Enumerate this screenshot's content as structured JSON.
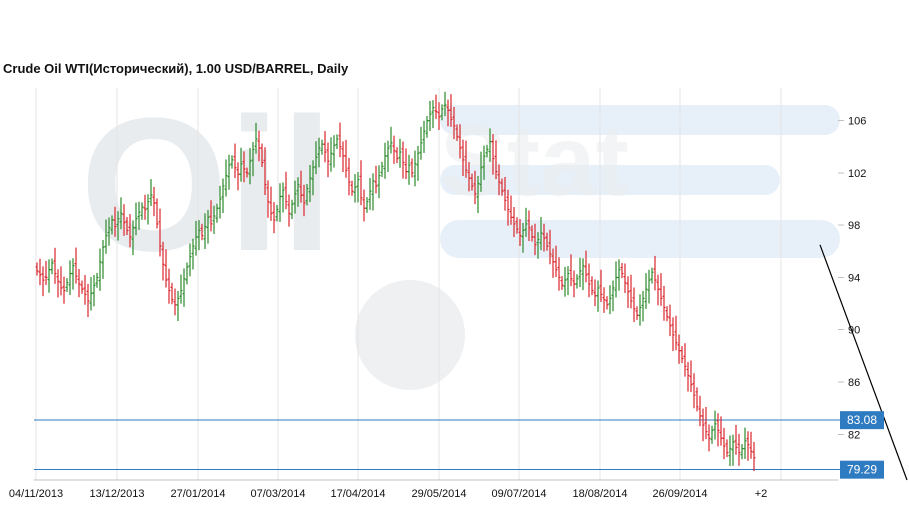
{
  "chart_data": {
    "type": "ohlc",
    "title": "Crude Oil WTI(Исторический), 1.00 USD/BARREL, Daily",
    "ylim": [
      78.5,
      108.5
    ],
    "y_ticks": [
      82,
      86,
      90,
      94,
      98,
      102,
      106
    ],
    "x_tick_labels": [
      "04/11/2013",
      "13/12/2013",
      "27/01/2014",
      "07/03/2014",
      "17/04/2014",
      "29/05/2014",
      "09/07/2014",
      "18/08/2014",
      "26/09/2014",
      "+2"
    ],
    "grid": true,
    "horizontal_lines": [
      {
        "value": 83.08,
        "label": "83.08"
      },
      {
        "value": 79.29,
        "label": "79.29"
      }
    ],
    "trendline": {
      "start_index": 261,
      "start_value": 96.5,
      "end_index": 290,
      "end_value": 78.5
    },
    "watermark": "OilStat",
    "closes": [
      94.5,
      94.2,
      93.8,
      94.0,
      94.6,
      95.1,
      94.3,
      93.7,
      93.2,
      93.0,
      93.6,
      94.3,
      94.9,
      94.1,
      93.5,
      93.1,
      92.7,
      92.2,
      92.8,
      93.4,
      94.0,
      95.2,
      96.3,
      97.2,
      97.8,
      98.4,
      97.9,
      98.5,
      98.9,
      98.2,
      97.6,
      97.1,
      97.8,
      98.5,
      99.0,
      99.4,
      99.2,
      99.8,
      100.3,
      99.7,
      98.1,
      96.4,
      95.0,
      93.8,
      93.0,
      92.3,
      91.9,
      92.4,
      93.0,
      93.9,
      94.8,
      95.6,
      96.4,
      97.1,
      97.6,
      97.2,
      97.9,
      98.6,
      98.1,
      98.7,
      99.3,
      100.0,
      101.0,
      101.8,
      102.6,
      103.0,
      102.4,
      101.9,
      102.7,
      102.3,
      102.0,
      102.9,
      103.8,
      104.6,
      103.9,
      102.8,
      101.1,
      99.8,
      98.9,
      98.4,
      99.2,
      100.2,
      100.7,
      99.8,
      98.9,
      99.6,
      100.4,
      101.1,
      100.3,
      99.7,
      100.8,
      101.6,
      102.4,
      103.2,
      103.9,
      104.2,
      103.6,
      102.9,
      103.5,
      104.1,
      104.6,
      104.0,
      103.3,
      102.2,
      101.3,
      100.6,
      100.9,
      101.5,
      100.1,
      99.3,
      99.8,
      100.6,
      101.4,
      101.0,
      101.8,
      102.5,
      103.3,
      103.9,
      104.3,
      103.7,
      103.1,
      103.6,
      102.8,
      102.1,
      102.6,
      102.0,
      102.7,
      103.5,
      104.3,
      105.2,
      106.0,
      106.5,
      107.0,
      106.7,
      106.3,
      106.9,
      107.2,
      106.8,
      106.1,
      105.6,
      104.8,
      103.9,
      103.0,
      102.2,
      101.6,
      101.0,
      100.4,
      101.2,
      102.4,
      103.3,
      103.8,
      104.4,
      103.1,
      102.1,
      101.3,
      100.6,
      99.9,
      99.2,
      98.6,
      98.1,
      97.7,
      97.2,
      97.6,
      98.1,
      97.8,
      97.1,
      96.5,
      96.9,
      97.4,
      97.0,
      96.4,
      95.8,
      95.2,
      94.6,
      94.0,
      93.4,
      93.8,
      94.3,
      93.9,
      93.5,
      93.9,
      94.5,
      94.9,
      94.2,
      93.5,
      93.0,
      92.6,
      93.2,
      92.7,
      92.3,
      91.9,
      92.4,
      93.2,
      94.0,
      94.6,
      94.3,
      93.6,
      92.9,
      92.2,
      91.6,
      91.1,
      91.7,
      92.4,
      93.1,
      93.8,
      94.4,
      93.8,
      93.1,
      92.4,
      91.7,
      91.0,
      90.3,
      89.6,
      89.0,
      88.4,
      87.8,
      87.2,
      86.5,
      85.8,
      85.0,
      84.1,
      83.4,
      82.7,
      82.2,
      81.7,
      82.3,
      82.8,
      82.3,
      81.7,
      81.1,
      80.6,
      80.9,
      81.4,
      81.0,
      80.6,
      80.9,
      81.5,
      81.2,
      80.7,
      80.2
    ]
  }
}
